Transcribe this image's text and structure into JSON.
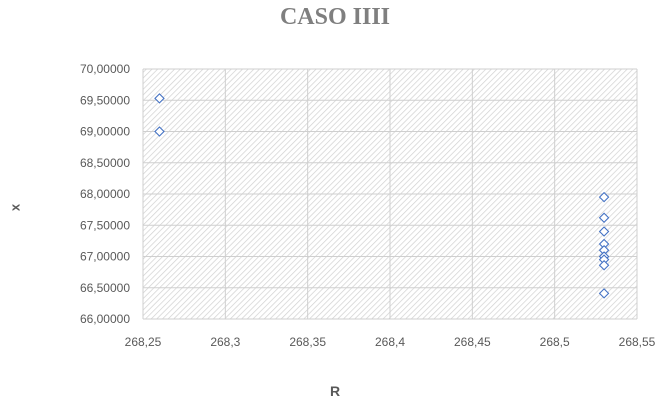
{
  "chart_data": {
    "type": "scatter",
    "title": "CASO IIII",
    "xlabel": "R",
    "ylabel": "x",
    "xlim": [
      268.25,
      268.55
    ],
    "ylim": [
      66.0,
      70.0
    ],
    "x_ticks": [
      268.25,
      268.3,
      268.35,
      268.4,
      268.45,
      268.5,
      268.55
    ],
    "x_tick_labels": [
      "268,25",
      "268,3",
      "268,35",
      "268,4",
      "268,45",
      "268,5",
      "268,55"
    ],
    "y_ticks": [
      66.0,
      66.5,
      67.0,
      67.5,
      68.0,
      68.5,
      69.0,
      69.5,
      70.0
    ],
    "y_tick_labels": [
      "66,00000",
      "66,50000",
      "67,00000",
      "67,50000",
      "68,00000",
      "68,50000",
      "69,00000",
      "69,50000",
      "70,00000"
    ],
    "grid": true,
    "marker": "diamond",
    "marker_color": "#4472c4",
    "plot_fill": "hatched-gray",
    "points": [
      {
        "x": 268.26,
        "y": 69.53
      },
      {
        "x": 268.26,
        "y": 69.0
      },
      {
        "x": 268.53,
        "y": 67.95
      },
      {
        "x": 268.53,
        "y": 67.62
      },
      {
        "x": 268.53,
        "y": 67.4
      },
      {
        "x": 268.53,
        "y": 67.2
      },
      {
        "x": 268.53,
        "y": 67.1
      },
      {
        "x": 268.53,
        "y": 67.0
      },
      {
        "x": 268.53,
        "y": 66.95
      },
      {
        "x": 268.53,
        "y": 66.86
      },
      {
        "x": 268.53,
        "y": 66.41
      }
    ]
  }
}
